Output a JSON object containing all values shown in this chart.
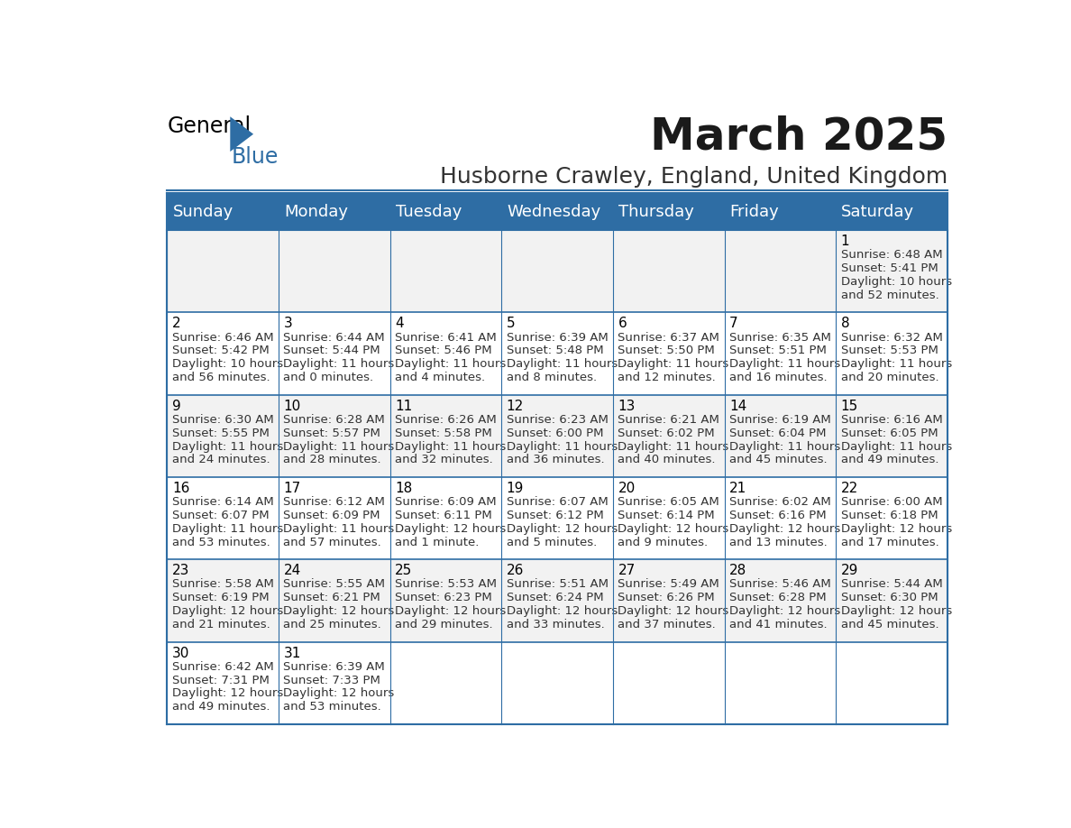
{
  "title": "March 2025",
  "subtitle": "Husborne Crawley, England, United Kingdom",
  "header_bg": "#2E6DA4",
  "header_text": "#FFFFFF",
  "cell_bg_odd": "#F2F2F2",
  "cell_bg_even": "#FFFFFF",
  "title_color": "#1a1a1a",
  "subtitle_color": "#333333",
  "day_headers": [
    "Sunday",
    "Monday",
    "Tuesday",
    "Wednesday",
    "Thursday",
    "Friday",
    "Saturday"
  ],
  "weeks": [
    [
      {
        "day": null,
        "sunrise": null,
        "sunset": null,
        "daylight": null
      },
      {
        "day": null,
        "sunrise": null,
        "sunset": null,
        "daylight": null
      },
      {
        "day": null,
        "sunrise": null,
        "sunset": null,
        "daylight": null
      },
      {
        "day": null,
        "sunrise": null,
        "sunset": null,
        "daylight": null
      },
      {
        "day": null,
        "sunrise": null,
        "sunset": null,
        "daylight": null
      },
      {
        "day": null,
        "sunrise": null,
        "sunset": null,
        "daylight": null
      },
      {
        "day": 1,
        "sunrise": "6:48 AM",
        "sunset": "5:41 PM",
        "daylight": "10 hours\nand 52 minutes."
      }
    ],
    [
      {
        "day": 2,
        "sunrise": "6:46 AM",
        "sunset": "5:42 PM",
        "daylight": "10 hours\nand 56 minutes."
      },
      {
        "day": 3,
        "sunrise": "6:44 AM",
        "sunset": "5:44 PM",
        "daylight": "11 hours\nand 0 minutes."
      },
      {
        "day": 4,
        "sunrise": "6:41 AM",
        "sunset": "5:46 PM",
        "daylight": "11 hours\nand 4 minutes."
      },
      {
        "day": 5,
        "sunrise": "6:39 AM",
        "sunset": "5:48 PM",
        "daylight": "11 hours\nand 8 minutes."
      },
      {
        "day": 6,
        "sunrise": "6:37 AM",
        "sunset": "5:50 PM",
        "daylight": "11 hours\nand 12 minutes."
      },
      {
        "day": 7,
        "sunrise": "6:35 AM",
        "sunset": "5:51 PM",
        "daylight": "11 hours\nand 16 minutes."
      },
      {
        "day": 8,
        "sunrise": "6:32 AM",
        "sunset": "5:53 PM",
        "daylight": "11 hours\nand 20 minutes."
      }
    ],
    [
      {
        "day": 9,
        "sunrise": "6:30 AM",
        "sunset": "5:55 PM",
        "daylight": "11 hours\nand 24 minutes."
      },
      {
        "day": 10,
        "sunrise": "6:28 AM",
        "sunset": "5:57 PM",
        "daylight": "11 hours\nand 28 minutes."
      },
      {
        "day": 11,
        "sunrise": "6:26 AM",
        "sunset": "5:58 PM",
        "daylight": "11 hours\nand 32 minutes."
      },
      {
        "day": 12,
        "sunrise": "6:23 AM",
        "sunset": "6:00 PM",
        "daylight": "11 hours\nand 36 minutes."
      },
      {
        "day": 13,
        "sunrise": "6:21 AM",
        "sunset": "6:02 PM",
        "daylight": "11 hours\nand 40 minutes."
      },
      {
        "day": 14,
        "sunrise": "6:19 AM",
        "sunset": "6:04 PM",
        "daylight": "11 hours\nand 45 minutes."
      },
      {
        "day": 15,
        "sunrise": "6:16 AM",
        "sunset": "6:05 PM",
        "daylight": "11 hours\nand 49 minutes."
      }
    ],
    [
      {
        "day": 16,
        "sunrise": "6:14 AM",
        "sunset": "6:07 PM",
        "daylight": "11 hours\nand 53 minutes."
      },
      {
        "day": 17,
        "sunrise": "6:12 AM",
        "sunset": "6:09 PM",
        "daylight": "11 hours\nand 57 minutes."
      },
      {
        "day": 18,
        "sunrise": "6:09 AM",
        "sunset": "6:11 PM",
        "daylight": "12 hours\nand 1 minute."
      },
      {
        "day": 19,
        "sunrise": "6:07 AM",
        "sunset": "6:12 PM",
        "daylight": "12 hours\nand 5 minutes."
      },
      {
        "day": 20,
        "sunrise": "6:05 AM",
        "sunset": "6:14 PM",
        "daylight": "12 hours\nand 9 minutes."
      },
      {
        "day": 21,
        "sunrise": "6:02 AM",
        "sunset": "6:16 PM",
        "daylight": "12 hours\nand 13 minutes."
      },
      {
        "day": 22,
        "sunrise": "6:00 AM",
        "sunset": "6:18 PM",
        "daylight": "12 hours\nand 17 minutes."
      }
    ],
    [
      {
        "day": 23,
        "sunrise": "5:58 AM",
        "sunset": "6:19 PM",
        "daylight": "12 hours\nand 21 minutes."
      },
      {
        "day": 24,
        "sunrise": "5:55 AM",
        "sunset": "6:21 PM",
        "daylight": "12 hours\nand 25 minutes."
      },
      {
        "day": 25,
        "sunrise": "5:53 AM",
        "sunset": "6:23 PM",
        "daylight": "12 hours\nand 29 minutes."
      },
      {
        "day": 26,
        "sunrise": "5:51 AM",
        "sunset": "6:24 PM",
        "daylight": "12 hours\nand 33 minutes."
      },
      {
        "day": 27,
        "sunrise": "5:49 AM",
        "sunset": "6:26 PM",
        "daylight": "12 hours\nand 37 minutes."
      },
      {
        "day": 28,
        "sunrise": "5:46 AM",
        "sunset": "6:28 PM",
        "daylight": "12 hours\nand 41 minutes."
      },
      {
        "day": 29,
        "sunrise": "5:44 AM",
        "sunset": "6:30 PM",
        "daylight": "12 hours\nand 45 minutes."
      }
    ],
    [
      {
        "day": 30,
        "sunrise": "6:42 AM",
        "sunset": "7:31 PM",
        "daylight": "12 hours\nand 49 minutes."
      },
      {
        "day": 31,
        "sunrise": "6:39 AM",
        "sunset": "7:33 PM",
        "daylight": "12 hours\nand 53 minutes."
      },
      {
        "day": null,
        "sunrise": null,
        "sunset": null,
        "daylight": null
      },
      {
        "day": null,
        "sunrise": null,
        "sunset": null,
        "daylight": null
      },
      {
        "day": null,
        "sunrise": null,
        "sunset": null,
        "daylight": null
      },
      {
        "day": null,
        "sunrise": null,
        "sunset": null,
        "daylight": null
      },
      {
        "day": null,
        "sunrise": null,
        "sunset": null,
        "daylight": null
      }
    ]
  ],
  "logo_color": "#2E6DA4",
  "border_color": "#2E6DA4",
  "text_color": "#333333"
}
